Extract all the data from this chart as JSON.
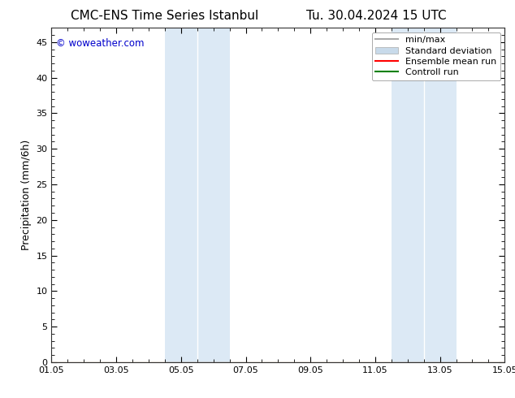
{
  "title": "CMC-ENS Time Series Istanbul",
  "title_right": "Tu. 30.04.2024 15 UTC",
  "ylabel": "Precipitation (mm/6h)",
  "watermark": "© woweather.com",
  "xlim_numeric": [
    0,
    14
  ],
  "xtick_positions": [
    0,
    2,
    4,
    6,
    8,
    10,
    12,
    14
  ],
  "xtick_labels": [
    "01.05",
    "03.05",
    "05.05",
    "07.05",
    "09.05",
    "11.05",
    "13.05",
    "15.05"
  ],
  "ylim": [
    0,
    47
  ],
  "ytick_positions": [
    0,
    5,
    10,
    15,
    20,
    25,
    30,
    35,
    40,
    45
  ],
  "shaded_regions": [
    {
      "xmin": 3.5,
      "xmax": 4.5,
      "color": "#dce9f5"
    },
    {
      "xmin": 4.5,
      "xmax": 5.5,
      "color": "#dce9f5"
    },
    {
      "xmin": 10.5,
      "xmax": 11.5,
      "color": "#dce9f5"
    },
    {
      "xmin": 11.5,
      "xmax": 12.5,
      "color": "#dce9f5"
    }
  ],
  "legend_entries": [
    {
      "label": "min/max",
      "color": "#aaaaaa",
      "lw": 1.5
    },
    {
      "label": "Standard deviation",
      "color": "#c8daea",
      "lw": 6
    },
    {
      "label": "Ensemble mean run",
      "color": "red",
      "lw": 1.5
    },
    {
      "label": "Controll run",
      "color": "green",
      "lw": 1.5
    }
  ],
  "bg_color": "#ffffff",
  "plot_bg_color": "#ffffff",
  "watermark_color": "#0000cc",
  "title_fontsize": 11,
  "label_fontsize": 9,
  "tick_fontsize": 8,
  "legend_fontsize": 8
}
